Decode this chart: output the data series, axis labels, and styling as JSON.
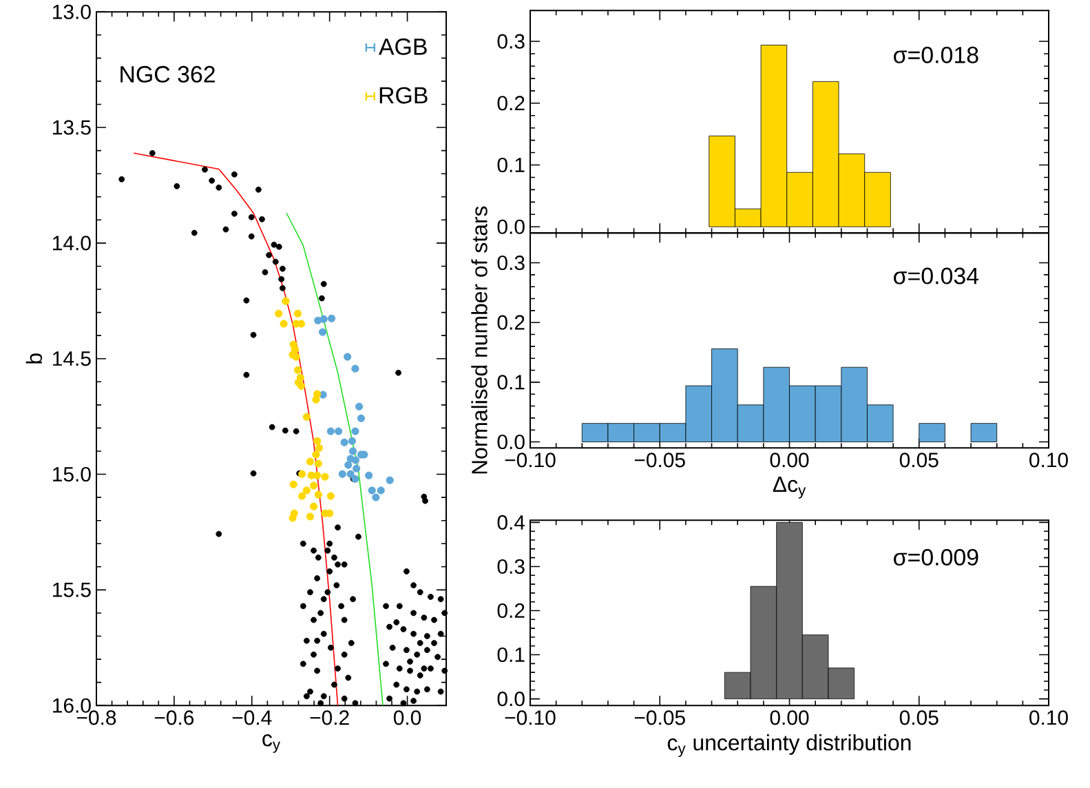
{
  "chart_data": [
    {
      "type": "scatter",
      "xlabel": "c$_{y}$",
      "ylabel": "b",
      "annotations": [
        "NGC 362"
      ],
      "legend": "top right",
      "xlim": [
        -0.8,
        0.1
      ],
      "ylim": [
        16.0,
        13.0
      ],
      "xticks": [
        {
          "value": -0.8,
          "label": "−0.8"
        },
        {
          "value": -0.6,
          "label": "−0.6"
        },
        {
          "value": -0.4,
          "label": "−0.4"
        },
        {
          "value": -0.2,
          "label": "−0.2"
        },
        {
          "value": 0,
          "label": "0.0"
        }
      ],
      "yticks": [
        {
          "value": 13,
          "label": "13.0"
        },
        {
          "value": 13.5,
          "label": "13.5"
        },
        {
          "value": 14,
          "label": "14.0"
        },
        {
          "value": 14.5,
          "label": "14.5"
        },
        {
          "value": 15,
          "label": "15.0"
        },
        {
          "value": 15.5,
          "label": "15.5"
        },
        {
          "value": 16,
          "label": "16.0"
        }
      ],
      "series": [
        {
          "color": "#000000",
          "x": [
            -0.735,
            -0.656,
            -0.593,
            -0.548,
            -0.521,
            -0.503,
            -0.485,
            -0.467,
            -0.445,
            -0.445,
            -0.401,
            -0.383,
            -0.374,
            -0.401,
            -0.356,
            -0.343,
            -0.33,
            -0.339,
            -0.321,
            -0.324,
            -0.366,
            -0.414,
            -0.396,
            -0.414,
            -0.215,
            -0.22,
            -0.321,
            -0.348,
            -0.314,
            -0.286,
            -0.396,
            -0.485,
            -0.023,
            0.043,
            0.046,
            -0.278,
            -0.139,
            -0.268,
            -0.241,
            -0.229,
            -0.205,
            -0.2,
            -0.188,
            -0.179,
            -0.182,
            -0.232,
            -0.25,
            -0.215,
            -0.268,
            -0.241,
            -0.223,
            -0.17,
            -0.162,
            -0.215,
            -0.259,
            -0.241,
            -0.197,
            -0.162,
            -0.144,
            -0.268,
            -0.232,
            -0.179,
            -0.152,
            -0.25,
            -0.215,
            -0.188,
            -0.162,
            -0.134,
            -0.223,
            -0.259,
            -0.2,
            -0.126,
            -0.162,
            -0.179,
            -0.205,
            -0.232,
            -0.14,
            -0.002,
            0.016,
            0.033,
            0.06,
            0.086,
            -0.02,
            0.016,
            0.043,
            0.069,
            0.096,
            -0.046,
            -0.01,
            0.016,
            0.051,
            0.086,
            -0.038,
            -0.002,
            0.025,
            0.051,
            0.078,
            -0.02,
            0.007,
            0.033,
            0.06,
            0.096,
            -0.028,
            -0.002,
            0.025,
            0.051,
            0.086,
            -0.046,
            -0.01,
            0.016,
            0.043,
            0.069,
            -0.055,
            -0.028,
            0.033,
            0.007,
            -0.055
          ],
          "values": [
            13.724,
            13.611,
            13.754,
            13.956,
            13.682,
            13.73,
            13.76,
            13.941,
            13.873,
            13.703,
            13.888,
            13.769,
            13.897,
            13.971,
            14.052,
            14.007,
            14.016,
            14.081,
            14.111,
            14.156,
            14.126,
            14.248,
            14.397,
            14.57,
            14.177,
            14.239,
            14.195,
            14.796,
            14.811,
            14.814,
            14.996,
            15.258,
            14.561,
            15.097,
            15.115,
            14.996,
            15.02,
            15.3,
            15.33,
            15.36,
            15.33,
            15.42,
            15.36,
            15.39,
            15.48,
            15.45,
            15.51,
            15.54,
            15.57,
            15.63,
            15.6,
            15.57,
            15.63,
            15.69,
            15.72,
            15.78,
            15.75,
            15.78,
            15.73,
            15.82,
            15.85,
            15.84,
            15.88,
            15.94,
            15.96,
            15.91,
            15.97,
            15.99,
            15.99,
            15.96,
            15.3,
            15.27,
            15.39,
            15.23,
            15.51,
            15.72,
            15.54,
            15.42,
            15.48,
            15.51,
            15.53,
            15.54,
            15.57,
            15.6,
            15.62,
            15.63,
            15.6,
            15.66,
            15.67,
            15.69,
            15.7,
            15.69,
            15.75,
            15.76,
            15.78,
            15.76,
            15.79,
            15.84,
            15.85,
            15.87,
            15.84,
            15.85,
            15.91,
            15.93,
            15.94,
            15.93,
            15.94,
            15.97,
            15.99,
            15.98,
            15.84,
            15.73,
            15.57,
            15.64,
            15.73,
            15.81,
            15.82
          ]
        },
        {
          "type": "line",
          "line_style": "solid",
          "color": "#ff0000",
          "x": [
            -0.704,
            -0.485,
            -0.44,
            -0.396,
            -0.343,
            -0.318,
            -0.295,
            -0.268,
            -0.241,
            -0.218,
            -0.2,
            -0.179
          ],
          "values": [
            13.611,
            13.68,
            13.77,
            13.87,
            14.07,
            14.2,
            14.35,
            14.59,
            14.86,
            15.21,
            15.54,
            16.0
          ]
        },
        {
          "type": "line",
          "line_style": "solid",
          "color": "#22dd22",
          "x": [
            -0.311,
            -0.268,
            -0.232,
            -0.179,
            -0.126,
            -0.091,
            -0.063
          ],
          "values": [
            13.87,
            14.01,
            14.23,
            14.56,
            14.98,
            15.48,
            16.0
          ]
        },
        {
          "name": "AGB",
          "color": "#5ea7d8",
          "x": [
            -0.23,
            -0.215,
            -0.195,
            -0.218,
            -0.154,
            -0.134,
            -0.217,
            -0.124,
            -0.119,
            -0.197,
            -0.177,
            -0.134,
            -0.162,
            -0.142,
            -0.14,
            -0.119,
            -0.146,
            -0.133,
            -0.111,
            -0.167,
            -0.146,
            -0.131,
            -0.099,
            -0.081,
            -0.045,
            -0.068,
            -0.091,
            -0.134,
            -0.152
          ],
          "values": [
            14.335,
            14.329,
            14.326,
            14.385,
            14.492,
            14.543,
            14.656,
            14.707,
            14.758,
            14.814,
            14.814,
            14.814,
            14.862,
            14.856,
            14.9,
            14.915,
            14.933,
            14.939,
            14.915,
            14.999,
            14.999,
            14.975,
            15.005,
            15.1,
            15.026,
            15.07,
            15.07,
            15.02,
            14.96
          ]
        },
        {
          "name": "RGB",
          "color": "#ffd700",
          "x": [
            -0.313,
            -0.331,
            -0.282,
            -0.318,
            -0.286,
            -0.273,
            -0.293,
            -0.289,
            -0.295,
            -0.286,
            -0.282,
            -0.275,
            -0.28,
            -0.273,
            -0.232,
            -0.235,
            -0.259,
            -0.232,
            -0.227,
            -0.235,
            -0.25,
            -0.229,
            -0.271,
            -0.247,
            -0.232,
            -0.212,
            -0.293,
            -0.241,
            -0.259,
            -0.229,
            -0.271,
            -0.197,
            -0.241,
            -0.212,
            -0.25,
            -0.2,
            -0.291,
            -0.295
          ],
          "values": [
            14.251,
            14.305,
            14.305,
            14.349,
            14.349,
            14.349,
            14.439,
            14.46,
            14.483,
            14.492,
            14.549,
            14.582,
            14.603,
            14.618,
            14.653,
            14.677,
            14.752,
            14.856,
            14.886,
            14.915,
            14.945,
            14.954,
            14.999,
            15.005,
            15.005,
            15.011,
            15.044,
            15.049,
            15.07,
            15.088,
            15.094,
            15.094,
            15.139,
            15.169,
            15.183,
            15.169,
            15.169,
            15.189
          ]
        }
      ]
    },
    {
      "type": "histogram",
      "annotations": [
        "σ=0.018"
      ],
      "color": "#ffd700",
      "tick_labels": "y",
      "xlim": [
        -0.1,
        0.1
      ],
      "ylim": [
        -0.01,
        0.35
      ],
      "xticks": [
        -0.1,
        -0.05,
        0,
        0.05,
        0.1
      ],
      "yticks": [
        {
          "value": 0,
          "label": "0.0"
        },
        {
          "value": 0.1,
          "label": "0.1"
        },
        {
          "value": 0.2,
          "label": "0.2"
        },
        {
          "value": 0.3,
          "label": "0.3"
        }
      ],
      "bins": [
        -0.031,
        -0.021,
        -0.011,
        -0.001,
        0.009,
        0.019,
        0.029,
        0.039
      ],
      "values": [
        0.147,
        0.029,
        0.294,
        0.088,
        0.235,
        0.118,
        0.088
      ]
    },
    {
      "type": "histogram",
      "annotations": [
        "σ=0.034"
      ],
      "ylabel": "Normalised number of stars",
      "xlabel": "Δc$_{y}$",
      "color": "#5ea7d8",
      "xlim": [
        -0.1,
        0.1
      ],
      "ylim": [
        -0.01,
        0.35
      ],
      "xticks": [
        {
          "value": -0.1,
          "label": "−0.10"
        },
        {
          "value": -0.05,
          "label": "−0.05"
        },
        {
          "value": 0,
          "label": "0.00"
        },
        {
          "value": 0.05,
          "label": "0.05"
        },
        {
          "value": 0.1,
          "label": "0.10"
        }
      ],
      "yticks": [
        {
          "value": 0,
          "label": "0.0"
        },
        {
          "value": 0.1,
          "label": "0.1"
        },
        {
          "value": 0.2,
          "label": "0.2"
        },
        {
          "value": 0.3,
          "label": "0.3"
        }
      ],
      "bins": [
        -0.08,
        -0.07,
        -0.06,
        -0.05,
        -0.04,
        -0.03,
        -0.02,
        -0.01,
        0.0,
        0.01,
        0.02,
        0.03,
        0.04,
        0.05,
        0.06,
        0.07,
        0.08
      ],
      "values": [
        0.031,
        0.031,
        0.031,
        0.031,
        0.094,
        0.156,
        0.062,
        0.125,
        0.094,
        0.094,
        0.125,
        0.062,
        0,
        0.031,
        0,
        0.031
      ]
    },
    {
      "type": "histogram",
      "annotations": [
        "σ=0.009"
      ],
      "xlabel": "c$_{y}$ uncertainty distribution",
      "color": "#6b6b6b",
      "xlim": [
        -0.1,
        0.1
      ],
      "ylim": [
        -0.015,
        0.405
      ],
      "xticks": [
        {
          "value": -0.1,
          "label": "−0.10"
        },
        {
          "value": -0.05,
          "label": "−0.05"
        },
        {
          "value": 0,
          "label": "0.00"
        },
        {
          "value": 0.05,
          "label": "0.05"
        },
        {
          "value": 0.1,
          "label": "0.10"
        }
      ],
      "yticks": [
        {
          "value": 0,
          "label": "0.0"
        },
        {
          "value": 0.1,
          "label": "0.1"
        },
        {
          "value": 0.2,
          "label": "0.2"
        },
        {
          "value": 0.3,
          "label": "0.3"
        },
        {
          "value": 0.4,
          "label": "0.4"
        }
      ],
      "bins": [
        -0.025,
        -0.015,
        -0.005,
        0.005,
        0.015,
        0.025
      ],
      "values": [
        0.06,
        0.255,
        0.4,
        0.145,
        0.07
      ]
    }
  ]
}
